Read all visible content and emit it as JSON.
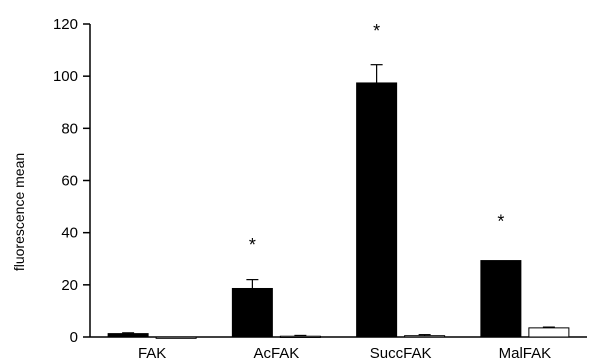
{
  "chart_data": {
    "type": "bar",
    "title": "",
    "xlabel": "",
    "ylabel": "fluorescence mean",
    "ylim": [
      0,
      120
    ],
    "yticks": [
      0,
      20,
      40,
      60,
      80,
      100,
      120
    ],
    "categories": [
      "FAK",
      "AcFAK",
      "SuccFAK",
      "MalFAK"
    ],
    "series": [
      {
        "values": [
          1.3,
          18.6,
          97.4,
          29.3
        ],
        "errors": [
          0.3,
          3.4,
          7.0,
          0.0
        ],
        "color": "#000000"
      },
      {
        "values": [
          -0.5,
          0.3,
          0.5,
          3.5
        ],
        "errors": [
          0.0,
          0.3,
          0.4,
          0.3
        ],
        "color": "#ffffff"
      }
    ],
    "annotations": [
      "*",
      "*",
      "*"
    ],
    "annotation_categories": [
      "AcFAK",
      "SuccFAK",
      "MalFAK"
    ],
    "annotation_values": [
      36,
      118,
      45
    ],
    "grid": false,
    "legend": "none"
  }
}
